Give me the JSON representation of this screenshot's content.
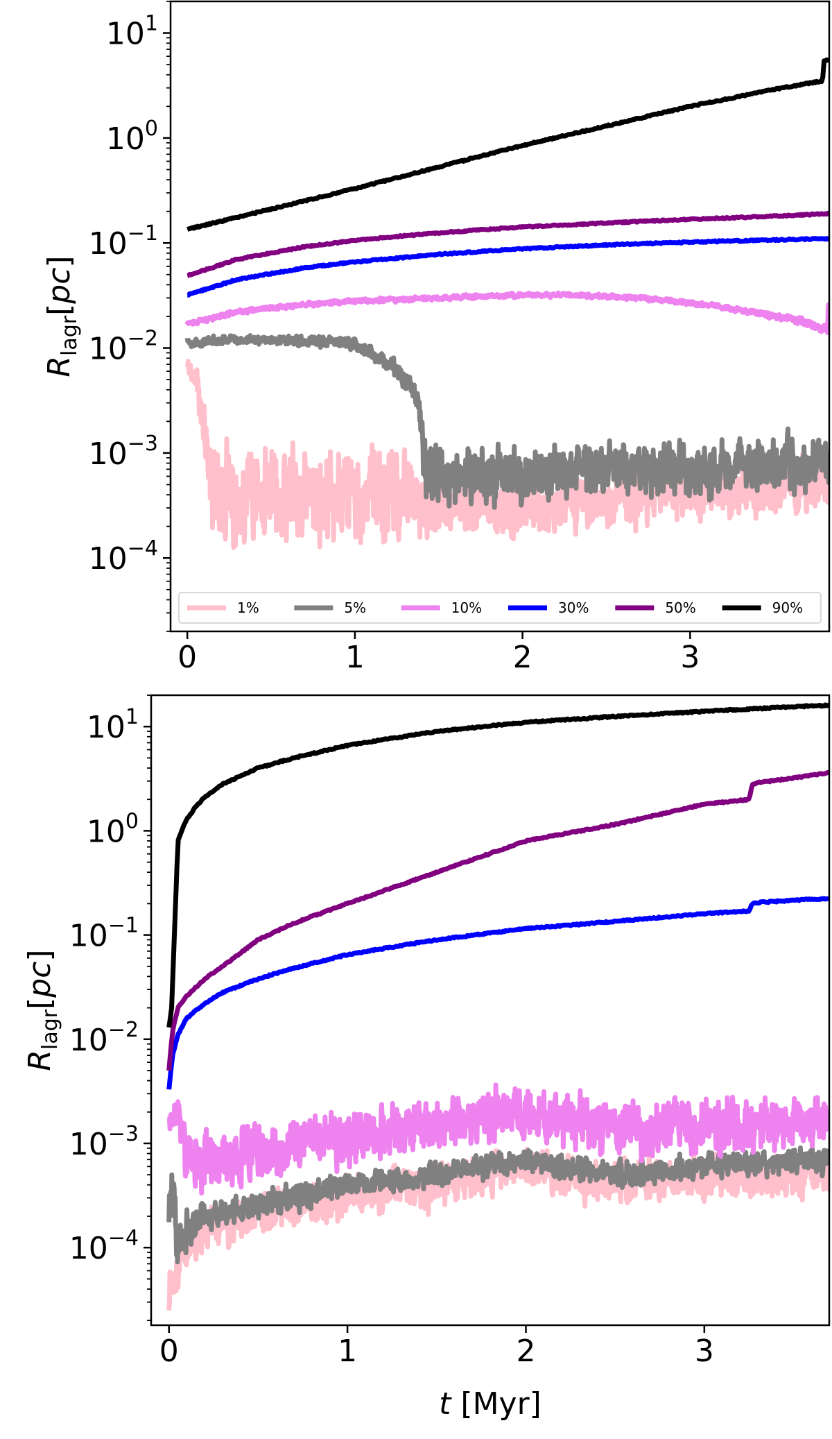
{
  "chart_data": [
    {
      "type": "line",
      "panel": "top",
      "xlabel": "",
      "ylabel": "R_lagr [pc]",
      "ylabel_parts": {
        "main": "R",
        "sub": "lagr",
        "unit_open": "[",
        "unit": "pc",
        "unit_close": "]"
      },
      "y_scale": "log",
      "xlim": [
        -0.1,
        3.83
      ],
      "ylim": [
        2e-05,
        20
      ],
      "grid": false,
      "x_ticks": [
        {
          "value": 0,
          "label": "0"
        },
        {
          "value": 1,
          "label": "1"
        },
        {
          "value": 2,
          "label": "2"
        },
        {
          "value": 3,
          "label": "3"
        }
      ],
      "y_ticks": [
        {
          "value": 0.0001,
          "base": "10",
          "exp": "−4"
        },
        {
          "value": 0.001,
          "base": "10",
          "exp": "−3"
        },
        {
          "value": 0.01,
          "base": "10",
          "exp": "−2"
        },
        {
          "value": 0.1,
          "base": "10",
          "exp": "−1"
        },
        {
          "value": 1,
          "base": "10",
          "exp": "0"
        },
        {
          "value": 10,
          "base": "10",
          "exp": "1"
        }
      ],
      "legend": {
        "placement": "bottom",
        "entries": [
          "1%",
          "5%",
          "10%",
          "30%",
          "50%",
          "90%"
        ]
      },
      "series": [
        {
          "name": "1%",
          "color": "#ffc0cb",
          "noisy": true,
          "x": [
            0,
            0.05,
            0.1,
            0.13,
            0.15,
            0.3,
            0.6,
            1.0,
            1.3,
            1.4,
            1.6,
            2.0,
            2.5,
            3.0,
            3.5,
            3.83
          ],
          "y": [
            0.007,
            0.005,
            0.002,
            0.0008,
            0.0004,
            0.0004,
            0.0004,
            0.0004,
            0.0004,
            0.0003,
            0.0003,
            0.0003,
            0.00035,
            0.0004,
            0.00045,
            0.0005
          ],
          "spread": [
            0.05,
            0.1,
            0.3,
            0.4,
            0.45,
            0.45,
            0.45,
            0.45,
            0.45,
            0.3,
            0.25,
            0.25,
            0.25,
            0.25,
            0.25,
            0.25
          ]
        },
        {
          "name": "5%",
          "color": "#808080",
          "noisy": true,
          "x": [
            0,
            0.05,
            0.2,
            0.5,
            0.8,
            1.0,
            1.1,
            1.2,
            1.3,
            1.38,
            1.4,
            1.41,
            1.6,
            2.0,
            2.5,
            3.0,
            3.5,
            3.83
          ],
          "y": [
            0.012,
            0.011,
            0.012,
            0.012,
            0.0115,
            0.011,
            0.009,
            0.007,
            0.005,
            0.003,
            0.0015,
            0.0007,
            0.0006,
            0.0006,
            0.0007,
            0.0007,
            0.0008,
            0.0009
          ],
          "spread": [
            0.04,
            0.04,
            0.04,
            0.04,
            0.05,
            0.05,
            0.06,
            0.08,
            0.1,
            0.12,
            0.2,
            0.3,
            0.25,
            0.25,
            0.25,
            0.25,
            0.25,
            0.25
          ]
        },
        {
          "name": "10%",
          "color": "#ee82ee",
          "noisy": true,
          "x": [
            0,
            0.3,
            0.7,
            1.0,
            1.5,
            2.0,
            2.3,
            2.7,
            3.0,
            3.3,
            3.6,
            3.82,
            3.825,
            3.83
          ],
          "y": [
            0.017,
            0.022,
            0.026,
            0.028,
            0.03,
            0.032,
            0.032,
            0.03,
            0.027,
            0.023,
            0.019,
            0.015,
            0.026,
            0.026
          ],
          "spread": [
            0.02,
            0.02,
            0.02,
            0.02,
            0.02,
            0.02,
            0.02,
            0.02,
            0.02,
            0.02,
            0.03,
            0.04,
            0.0,
            0.0
          ]
        },
        {
          "name": "30%",
          "color": "#0000ff",
          "noisy": false,
          "x": [
            0,
            0.3,
            0.7,
            1.0,
            1.5,
            2.0,
            2.5,
            3.0,
            3.5,
            3.83
          ],
          "y": [
            0.032,
            0.045,
            0.058,
            0.066,
            0.078,
            0.088,
            0.096,
            0.102,
            0.107,
            0.11
          ]
        },
        {
          "name": "50%",
          "color": "#800080",
          "noisy": false,
          "x": [
            0,
            0.3,
            0.7,
            1.0,
            1.5,
            2.0,
            2.5,
            3.0,
            3.5,
            3.83
          ],
          "y": [
            0.049,
            0.07,
            0.092,
            0.106,
            0.125,
            0.142,
            0.155,
            0.168,
            0.18,
            0.19
          ]
        },
        {
          "name": "90%",
          "color": "#000000",
          "noisy": false,
          "x": [
            0,
            0.5,
            1.0,
            1.5,
            2.0,
            2.5,
            3.0,
            3.5,
            3.79,
            3.8,
            3.83
          ],
          "y": [
            0.135,
            0.21,
            0.33,
            0.53,
            0.85,
            1.3,
            2.0,
            2.9,
            3.5,
            5.5,
            5.5
          ]
        }
      ]
    },
    {
      "type": "line",
      "panel": "bottom",
      "xlabel": "t [Myr]",
      "xlabel_parts": {
        "var": "t",
        "unit": "[Myr]"
      },
      "ylabel": "R_lagr [pc]",
      "ylabel_parts": {
        "main": "R",
        "sub": "lagr",
        "unit_open": "[",
        "unit": "pc",
        "unit_close": "]"
      },
      "y_scale": "log",
      "xlim": [
        -0.1,
        3.7
      ],
      "ylim": [
        1.8e-05,
        20
      ],
      "grid": false,
      "x_ticks": [
        {
          "value": 0,
          "label": "0"
        },
        {
          "value": 1,
          "label": "1"
        },
        {
          "value": 2,
          "label": "2"
        },
        {
          "value": 3,
          "label": "3"
        }
      ],
      "y_ticks": [
        {
          "value": 0.0001,
          "base": "10",
          "exp": "−4"
        },
        {
          "value": 0.001,
          "base": "10",
          "exp": "−3"
        },
        {
          "value": 0.01,
          "base": "10",
          "exp": "−2"
        },
        {
          "value": 0.1,
          "base": "10",
          "exp": "−1"
        },
        {
          "value": 1,
          "base": "10",
          "exp": "0"
        },
        {
          "value": 10,
          "base": "10",
          "exp": "1"
        }
      ],
      "series": [
        {
          "name": "1%",
          "color": "#ffc0cb",
          "noisy": true,
          "x": [
            0,
            0.03,
            0.08,
            0.2,
            0.5,
            1.0,
            1.5,
            2.0,
            2.2,
            2.5,
            3.0,
            3.7
          ],
          "y": [
            4e-05,
            6e-05,
            0.0001,
            0.00015,
            0.0002,
            0.0003,
            0.0004,
            0.0006,
            0.0005,
            0.0004,
            0.00045,
            0.0005
          ],
          "spread": [
            0.2,
            0.25,
            0.25,
            0.2,
            0.2,
            0.2,
            0.2,
            0.2,
            0.2,
            0.2,
            0.2,
            0.2
          ]
        },
        {
          "name": "5%",
          "color": "#808080",
          "noisy": true,
          "x": [
            0,
            0.03,
            0.08,
            0.2,
            0.5,
            1.0,
            1.5,
            2.0,
            2.2,
            2.5,
            3.0,
            3.7
          ],
          "y": [
            0.0003,
            0.0002,
            0.00015,
            0.0002,
            0.00025,
            0.0004,
            0.0005,
            0.0007,
            0.0006,
            0.0005,
            0.0006,
            0.0007
          ],
          "spread": [
            0.4,
            0.35,
            0.25,
            0.12,
            0.12,
            0.12,
            0.12,
            0.12,
            0.12,
            0.12,
            0.12,
            0.12
          ]
        },
        {
          "name": "10%",
          "color": "#ee82ee",
          "noisy": true,
          "x": [
            0,
            0.05,
            0.1,
            0.15,
            0.5,
            1.0,
            1.5,
            2.0,
            2.2,
            2.5,
            3.0,
            3.7
          ],
          "y": [
            0.0018,
            0.002,
            0.0008,
            0.0006,
            0.0008,
            0.0012,
            0.0015,
            0.002,
            0.0018,
            0.0014,
            0.0015,
            0.0015
          ],
          "spread": [
            0.12,
            0.12,
            0.3,
            0.3,
            0.28,
            0.25,
            0.25,
            0.25,
            0.25,
            0.25,
            0.25,
            0.25
          ]
        },
        {
          "name": "30%",
          "color": "#0000ff",
          "noisy": false,
          "x": [
            0,
            0.02,
            0.05,
            0.1,
            0.2,
            0.3,
            0.5,
            0.7,
            1.0,
            1.5,
            2.0,
            2.5,
            3.0,
            3.25,
            3.27,
            3.3,
            3.5,
            3.7
          ],
          "y": [
            0.0033,
            0.007,
            0.011,
            0.016,
            0.022,
            0.028,
            0.038,
            0.048,
            0.065,
            0.09,
            0.115,
            0.135,
            0.16,
            0.17,
            0.2,
            0.205,
            0.215,
            0.225
          ]
        },
        {
          "name": "50%",
          "color": "#800080",
          "noisy": false,
          "x": [
            0,
            0.02,
            0.05,
            0.1,
            0.2,
            0.3,
            0.5,
            0.7,
            1.0,
            1.5,
            2.0,
            2.5,
            3.0,
            3.25,
            3.27,
            3.3,
            3.5,
            3.7
          ],
          "y": [
            0.005,
            0.012,
            0.02,
            0.026,
            0.038,
            0.05,
            0.09,
            0.13,
            0.2,
            0.4,
            0.8,
            1.15,
            1.8,
            2.0,
            2.8,
            2.9,
            3.2,
            3.6
          ]
        },
        {
          "name": "90%",
          "color": "#000000",
          "noisy": false,
          "x": [
            0,
            0.015,
            0.03,
            0.05,
            0.08,
            0.1,
            0.15,
            0.2,
            0.3,
            0.5,
            0.7,
            1.0,
            1.5,
            2.0,
            2.5,
            3.0,
            3.5,
            3.7
          ],
          "y": [
            0.013,
            0.02,
            0.1,
            0.8,
            1.1,
            1.3,
            1.7,
            2.1,
            2.8,
            4.0,
            5.0,
            6.6,
            9.0,
            11.0,
            12.5,
            14.0,
            15.5,
            16.0
          ]
        }
      ]
    }
  ]
}
